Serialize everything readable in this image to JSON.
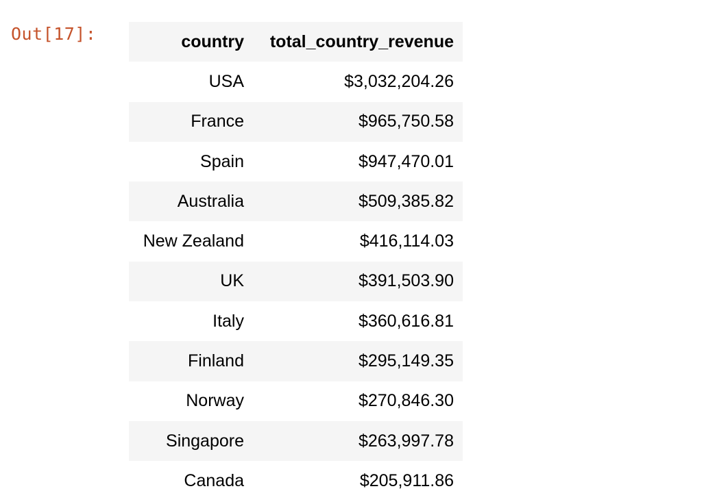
{
  "cell": {
    "prompt": "Out[17]:"
  },
  "table": {
    "columns": [
      "country",
      "total_country_revenue"
    ],
    "rows": [
      {
        "country": "USA",
        "total_country_revenue": "$3,032,204.26"
      },
      {
        "country": "France",
        "total_country_revenue": "$965,750.58"
      },
      {
        "country": "Spain",
        "total_country_revenue": "$947,470.01"
      },
      {
        "country": "Australia",
        "total_country_revenue": "$509,385.82"
      },
      {
        "country": "New Zealand",
        "total_country_revenue": "$416,114.03"
      },
      {
        "country": "UK",
        "total_country_revenue": "$391,503.90"
      },
      {
        "country": "Italy",
        "total_country_revenue": "$360,616.81"
      },
      {
        "country": "Finland",
        "total_country_revenue": "$295,149.35"
      },
      {
        "country": "Norway",
        "total_country_revenue": "$270,846.30"
      },
      {
        "country": "Singapore",
        "total_country_revenue": "$263,997.78"
      },
      {
        "country": "Canada",
        "total_country_revenue": "$205,911.86"
      }
    ]
  },
  "colors": {
    "prompt": "#c5532b",
    "stripe": "#f5f5f5"
  }
}
